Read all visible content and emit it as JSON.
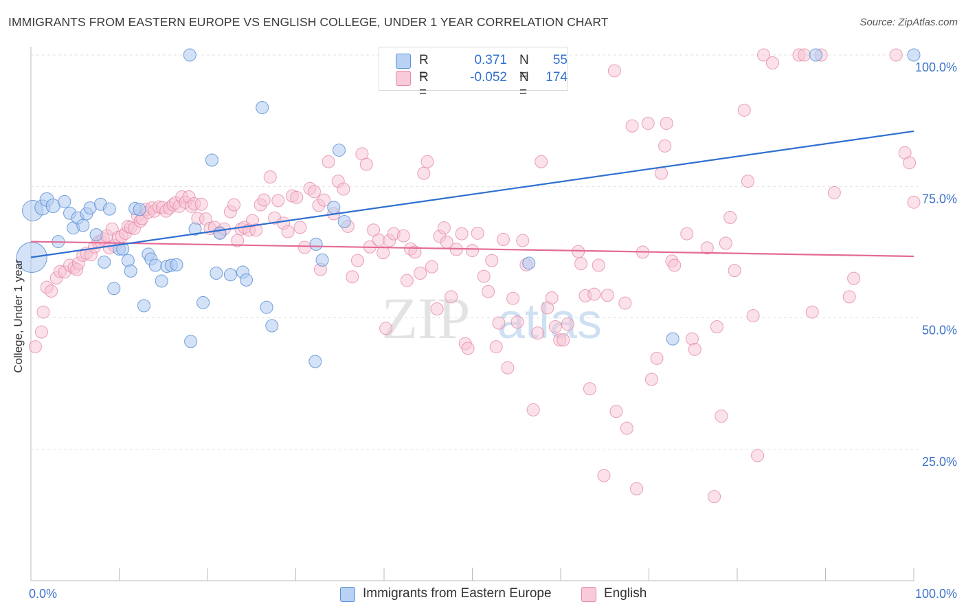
{
  "header": {
    "title": "IMMIGRANTS FROM EASTERN EUROPE VS ENGLISH COLLEGE, UNDER 1 YEAR CORRELATION CHART",
    "source": "Source: ZipAtlas.com"
  },
  "watermark": {
    "zip": "ZIP",
    "atlas": "atlas"
  },
  "legend": {
    "r_label": "R =",
    "n_label": "N =",
    "rows": [
      {
        "r_value": "0.371",
        "n_value": "55"
      },
      {
        "r_value": "-0.052",
        "n_value": "174"
      }
    ]
  },
  "colors": {
    "blue_fill": "#aecbf0",
    "blue_stroke": "#5b8fd6",
    "blue_line": "#2f6fd0",
    "pink_fill": "#f8c3d3",
    "pink_stroke": "#e48aa8",
    "pink_line": "#e46a95",
    "axis_text": "#3d72c9",
    "grid": "#e0e0e0"
  },
  "chart_data": {
    "type": "scatter",
    "title": "IMMIGRANTS FROM EASTERN EUROPE VS ENGLISH COLLEGE, UNDER 1 YEAR CORRELATION CHART",
    "xlabel": "",
    "ylabel": "College, Under 1 year",
    "xlim": [
      0,
      100
    ],
    "ylim": [
      0,
      100
    ],
    "x_tick_labels": [
      "0.0%",
      "100.0%"
    ],
    "y_ticks": [
      {
        "value": 25,
        "label": "25.0%"
      },
      {
        "value": 50,
        "label": "50.0%"
      },
      {
        "value": 75,
        "label": "75.0%"
      },
      {
        "value": 100,
        "label": "100.0%"
      }
    ],
    "grid": true,
    "series": [
      {
        "name": "Immigrants from Eastern Europe",
        "color": "blue",
        "r": 0.371,
        "n": 55,
        "trend": [
          [
            0,
            61.5
          ],
          [
            100,
            85.5
          ]
        ],
        "points": [
          [
            0.2,
            70.4,
            15
          ],
          [
            0.1,
            61.5,
            22
          ],
          [
            1.3,
            71.0,
            11
          ],
          [
            1.8,
            72.5,
            10
          ],
          [
            2.5,
            71.3,
            10
          ],
          [
            3.1,
            64.5,
            9
          ],
          [
            3.8,
            72.1,
            9
          ],
          [
            4.4,
            69.9,
            9
          ],
          [
            4.8,
            67.1,
            9
          ],
          [
            5.3,
            69.0,
            9
          ],
          [
            5.9,
            67.6,
            9
          ],
          [
            6.3,
            69.8,
            9
          ],
          [
            6.7,
            70.9,
            9
          ],
          [
            7.4,
            65.8,
            9
          ],
          [
            7.9,
            71.6,
            9
          ],
          [
            8.3,
            60.6,
            9
          ],
          [
            8.9,
            70.7,
            9
          ],
          [
            9.4,
            55.6,
            9
          ],
          [
            10.0,
            63.1,
            9
          ],
          [
            10.4,
            63.1,
            9
          ],
          [
            11.0,
            60.9,
            9
          ],
          [
            11.3,
            58.9,
            9
          ],
          [
            11.8,
            70.8,
            9
          ],
          [
            12.3,
            70.6,
            9
          ],
          [
            12.8,
            52.3,
            9
          ],
          [
            13.3,
            62.1,
            9
          ],
          [
            13.6,
            61.2,
            9
          ],
          [
            14.1,
            60.0,
            9
          ],
          [
            14.8,
            57.0,
            9
          ],
          [
            15.4,
            59.8,
            9
          ],
          [
            15.9,
            60.0,
            9
          ],
          [
            16.5,
            60.1,
            9
          ],
          [
            18.0,
            100.0,
            9
          ],
          [
            18.1,
            45.5,
            9
          ],
          [
            18.6,
            66.9,
            9
          ],
          [
            19.5,
            52.9,
            9
          ],
          [
            20.5,
            80.0,
            9
          ],
          [
            21.0,
            58.5,
            9
          ],
          [
            21.4,
            66.1,
            9
          ],
          [
            22.6,
            58.2,
            9
          ],
          [
            24.0,
            58.7,
            9
          ],
          [
            24.4,
            57.2,
            9
          ],
          [
            26.2,
            90.0,
            9
          ],
          [
            26.7,
            52.0,
            9
          ],
          [
            27.3,
            48.5,
            9
          ],
          [
            32.2,
            41.7,
            9
          ],
          [
            32.3,
            64.0,
            9
          ],
          [
            33.0,
            61.0,
            9
          ],
          [
            34.3,
            71.0,
            9
          ],
          [
            34.9,
            81.9,
            9
          ],
          [
            35.5,
            68.3,
            9
          ],
          [
            56.4,
            60.4,
            9
          ],
          [
            72.7,
            46.0,
            9
          ],
          [
            88.9,
            100.0,
            9
          ],
          [
            100.0,
            100.0,
            9
          ]
        ]
      },
      {
        "name": "English",
        "color": "pink",
        "r": -0.052,
        "n": 174,
        "trend": [
          [
            0,
            64.5
          ],
          [
            100,
            61.7
          ]
        ],
        "points": [
          [
            0.5,
            44.5
          ],
          [
            1.2,
            47.3
          ],
          [
            1.4,
            51.1
          ],
          [
            1.8,
            55.8
          ],
          [
            2.3,
            55.1
          ],
          [
            2.9,
            57.6
          ],
          [
            3.3,
            58.8
          ],
          [
            3.8,
            58.7
          ],
          [
            4.4,
            60.0
          ],
          [
            4.9,
            59.5
          ],
          [
            5.2,
            59.2
          ],
          [
            5.4,
            60.4
          ],
          [
            5.9,
            61.9
          ],
          [
            6.3,
            62.3
          ],
          [
            6.8,
            62.0
          ],
          [
            7.2,
            63.5
          ],
          [
            7.6,
            64.4
          ],
          [
            7.9,
            64.5
          ],
          [
            8.2,
            65.0
          ],
          [
            8.6,
            65.6
          ],
          [
            8.9,
            63.3
          ],
          [
            9.2,
            66.9
          ],
          [
            9.5,
            63.7
          ],
          [
            9.9,
            65.3
          ],
          [
            10.3,
            65.5
          ],
          [
            10.7,
            66.1
          ],
          [
            11.0,
            67.4
          ],
          [
            11.3,
            67.2
          ],
          [
            11.7,
            67.0
          ],
          [
            12.1,
            69.4
          ],
          [
            12.4,
            68.4
          ],
          [
            12.6,
            68.9
          ],
          [
            13.0,
            70.6
          ],
          [
            13.3,
            70.1
          ],
          [
            13.7,
            70.9
          ],
          [
            14.0,
            70.3
          ],
          [
            14.5,
            71.1
          ],
          [
            14.9,
            71.0
          ],
          [
            15.3,
            70.3
          ],
          [
            15.7,
            70.9
          ],
          [
            16.1,
            71.5
          ],
          [
            16.4,
            71.9
          ],
          [
            16.8,
            71.2
          ],
          [
            17.1,
            73.0
          ],
          [
            17.5,
            72.0
          ],
          [
            17.9,
            73.0
          ],
          [
            18.2,
            71.2
          ],
          [
            18.5,
            71.7
          ],
          [
            18.9,
            68.9
          ],
          [
            19.3,
            71.6
          ],
          [
            19.8,
            68.8
          ],
          [
            20.3,
            67.0
          ],
          [
            20.8,
            67.2
          ],
          [
            21.4,
            66.2
          ],
          [
            21.9,
            66.9
          ],
          [
            22.6,
            70.2
          ],
          [
            23.0,
            71.5
          ],
          [
            23.4,
            64.7
          ],
          [
            23.8,
            66.9
          ],
          [
            24.2,
            67.2
          ],
          [
            24.7,
            66.7
          ],
          [
            25.1,
            68.5
          ],
          [
            25.5,
            66.7
          ],
          [
            26.0,
            71.5
          ],
          [
            26.4,
            72.4
          ],
          [
            27.1,
            76.8
          ],
          [
            27.6,
            69.0
          ],
          [
            28.0,
            72.3
          ],
          [
            28.6,
            68.0
          ],
          [
            29.1,
            66.4
          ],
          [
            29.6,
            73.2
          ],
          [
            30.1,
            72.9
          ],
          [
            30.5,
            67.2
          ],
          [
            31.0,
            63.4
          ],
          [
            31.6,
            74.6
          ],
          [
            32.1,
            74.0
          ],
          [
            32.6,
            71.4
          ],
          [
            32.8,
            59.2
          ],
          [
            33.2,
            72.4
          ],
          [
            33.7,
            79.7
          ],
          [
            34.3,
            69.8
          ],
          [
            34.8,
            76.0
          ],
          [
            35.4,
            74.5
          ],
          [
            35.9,
            67.4
          ],
          [
            36.4,
            57.8
          ],
          [
            37.0,
            60.9
          ],
          [
            37.5,
            81.2
          ],
          [
            38.0,
            79.2
          ],
          [
            38.4,
            63.5
          ],
          [
            38.8,
            66.7
          ],
          [
            39.4,
            64.8
          ],
          [
            39.9,
            62.4
          ],
          [
            40.2,
            48.0
          ],
          [
            40.6,
            64.7
          ],
          [
            41.1,
            66.0
          ],
          [
            42.2,
            65.6
          ],
          [
            42.6,
            57.1
          ],
          [
            43.0,
            63.1
          ],
          [
            43.5,
            62.5
          ],
          [
            44.1,
            58.5
          ],
          [
            44.5,
            77.5
          ],
          [
            44.9,
            79.7
          ],
          [
            45.4,
            59.7
          ],
          [
            46.0,
            51.7
          ],
          [
            46.3,
            65.5
          ],
          [
            46.8,
            67.1
          ],
          [
            47.1,
            64.4
          ],
          [
            47.6,
            54.0
          ],
          [
            48.2,
            63.0
          ],
          [
            48.8,
            66.0
          ],
          [
            49.2,
            45.1
          ],
          [
            49.5,
            44.2
          ],
          [
            50.0,
            62.8
          ],
          [
            50.6,
            66.1
          ],
          [
            51.3,
            57.9
          ],
          [
            51.8,
            55.0
          ],
          [
            52.2,
            60.9
          ],
          [
            52.7,
            44.5
          ],
          [
            53.0,
            49.0
          ],
          [
            53.5,
            64.9
          ],
          [
            54.0,
            40.5
          ],
          [
            54.6,
            53.7
          ],
          [
            55.1,
            49.2
          ],
          [
            55.7,
            64.7
          ],
          [
            56.1,
            60.1
          ],
          [
            56.9,
            32.5
          ],
          [
            57.4,
            47.1
          ],
          [
            57.8,
            79.7
          ],
          [
            58.5,
            51.9
          ],
          [
            59.0,
            53.8
          ],
          [
            59.4,
            48.3
          ],
          [
            59.9,
            45.8
          ],
          [
            60.3,
            45.8
          ],
          [
            60.8,
            48.8
          ],
          [
            62.0,
            62.6
          ],
          [
            62.3,
            60.3
          ],
          [
            62.8,
            54.2
          ],
          [
            63.3,
            36.5
          ],
          [
            63.8,
            54.5
          ],
          [
            64.3,
            60.0
          ],
          [
            64.9,
            20.0
          ],
          [
            65.3,
            54.3
          ],
          [
            66.1,
            97.0
          ],
          [
            66.3,
            32.2
          ],
          [
            67.3,
            52.8
          ],
          [
            67.5,
            29.0
          ],
          [
            68.1,
            86.5
          ],
          [
            68.6,
            17.5
          ],
          [
            69.3,
            62.5
          ],
          [
            69.9,
            87.0
          ],
          [
            70.3,
            38.3
          ],
          [
            70.9,
            42.3
          ],
          [
            71.4,
            77.5
          ],
          [
            71.8,
            82.7
          ],
          [
            72.0,
            87.0
          ],
          [
            72.6,
            60.8
          ],
          [
            72.9,
            60.0
          ],
          [
            74.3,
            66.0
          ],
          [
            74.9,
            46.0
          ],
          [
            75.2,
            44.0
          ],
          [
            76.6,
            63.3
          ],
          [
            77.4,
            16.0
          ],
          [
            77.7,
            48.3
          ],
          [
            78.2,
            31.3
          ],
          [
            78.7,
            64.2
          ],
          [
            79.2,
            69.1
          ],
          [
            79.7,
            59.0
          ],
          [
            80.8,
            89.5
          ],
          [
            81.2,
            76.0
          ],
          [
            81.8,
            50.4
          ],
          [
            82.3,
            23.8
          ],
          [
            83.0,
            100.0
          ],
          [
            84.0,
            98.5
          ],
          [
            87.0,
            100.0
          ],
          [
            87.6,
            100.0
          ],
          [
            88.5,
            51.1
          ],
          [
            89.5,
            100.0
          ],
          [
            91.0,
            73.8
          ],
          [
            92.7,
            54.0
          ],
          [
            93.2,
            57.5
          ],
          [
            98.0,
            100.0
          ],
          [
            99.0,
            81.4
          ],
          [
            99.5,
            79.5
          ],
          [
            100.0,
            72.0
          ]
        ]
      }
    ]
  }
}
